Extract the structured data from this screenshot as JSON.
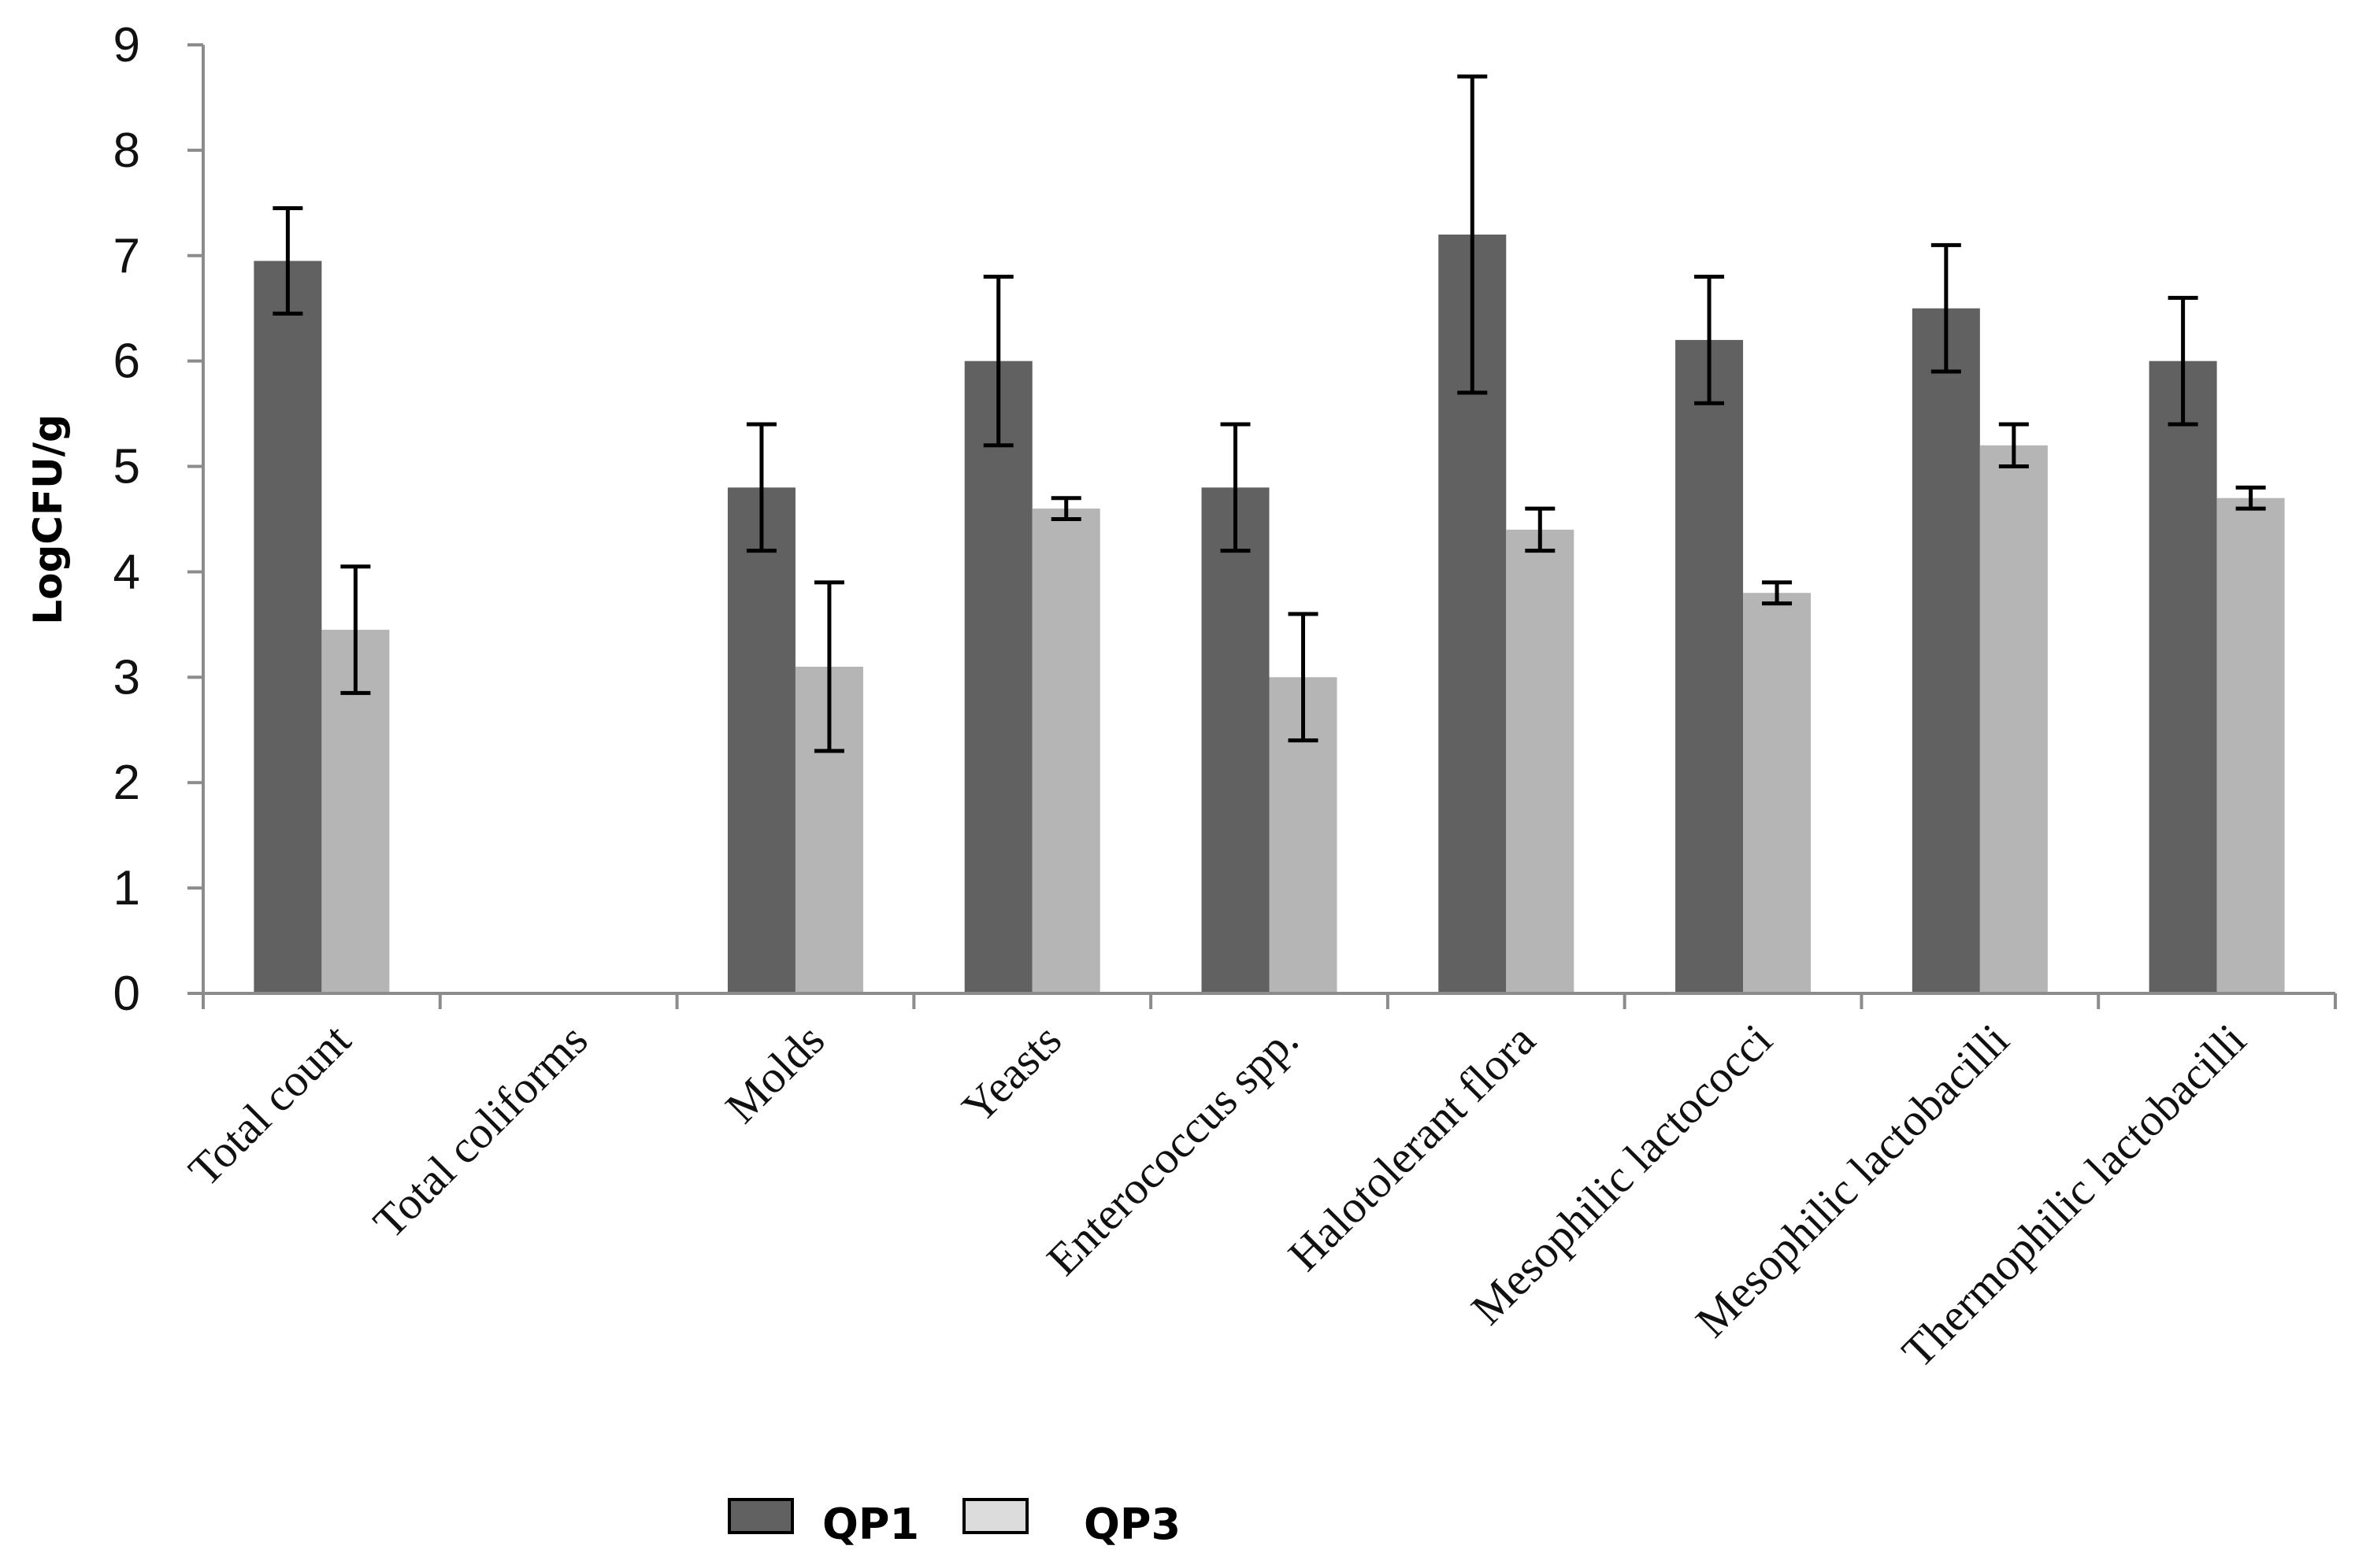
{
  "chart_data": {
    "type": "bar",
    "title": "",
    "xlabel": "",
    "ylabel": "LogCFU/g",
    "ylim": [
      0,
      9
    ],
    "yticks": [
      "0",
      "1",
      "2",
      "3",
      "4",
      "5",
      "6",
      "7",
      "8",
      "9"
    ],
    "grid": false,
    "legend_position": "bottom-center",
    "categories": [
      "Total count",
      "Total coliforms",
      "Molds",
      "Yeasts",
      "Enterococcus spp.",
      "Halotolerant flora",
      "Mesophilic lactococci",
      "Mesophilic lactobacilli",
      "Thermophilic lactobacilli"
    ],
    "series": [
      {
        "name": "QP1",
        "color": "#616161",
        "values": [
          6.95,
          0,
          4.8,
          6.0,
          4.8,
          7.2,
          6.2,
          6.5,
          6.0
        ],
        "errors": [
          0.5,
          0,
          0.6,
          0.8,
          0.6,
          1.5,
          0.6,
          0.6,
          0.6
        ]
      },
      {
        "name": "QP3",
        "color": "#b5b5b5",
        "values": [
          3.45,
          0,
          3.1,
          4.6,
          3.0,
          4.4,
          3.8,
          5.2,
          4.7
        ],
        "errors": [
          0.6,
          0,
          0.8,
          0.1,
          0.6,
          0.2,
          0.1,
          0.2,
          0.1
        ]
      }
    ]
  }
}
